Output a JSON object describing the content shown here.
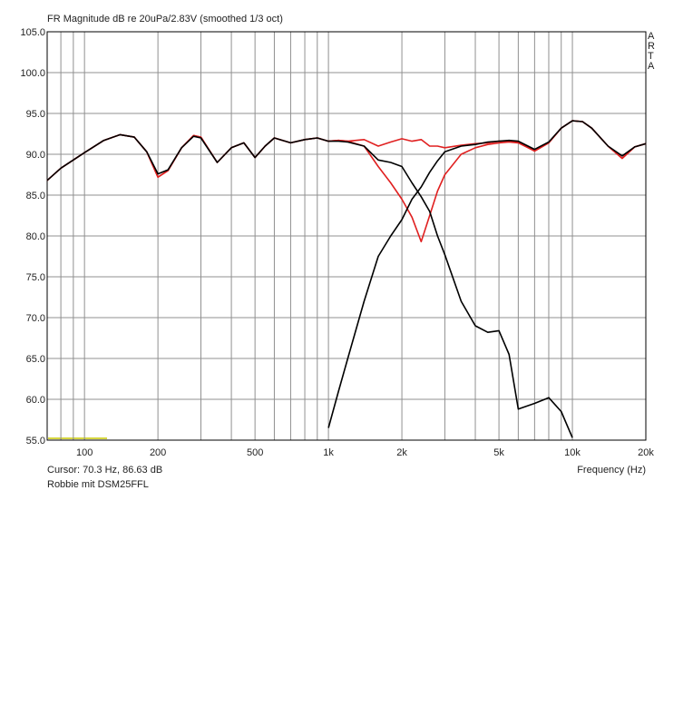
{
  "chart_data": {
    "type": "line",
    "title": "FR Magnitude dB re 20uPa/2.83V (smoothed 1/3 oct)",
    "side_label": "ARTA",
    "cursor_text": "Cursor: 70.3 Hz, 86.63 dB",
    "note": "Robbie mit DSM25FFL",
    "x_label": "Frequency (Hz)",
    "log_x": true,
    "grid": true,
    "xlim": [
      70.3,
      20000
    ],
    "ylim": [
      55,
      105
    ],
    "yticks": [
      {
        "value": 55,
        "label": "55.0"
      },
      {
        "value": 60,
        "label": "60.0"
      },
      {
        "value": 65,
        "label": "65.0"
      },
      {
        "value": 70,
        "label": "70.0"
      },
      {
        "value": 75,
        "label": "75.0"
      },
      {
        "value": 80,
        "label": "80.0"
      },
      {
        "value": 85,
        "label": "85.0"
      },
      {
        "value": 90,
        "label": "90.0"
      },
      {
        "value": 95,
        "label": "95.0"
      },
      {
        "value": 100,
        "label": "100.0"
      },
      {
        "value": 105,
        "label": "105.0"
      }
    ],
    "xticks": [
      100,
      200,
      500,
      {
        "value": 1000,
        "label": "1k"
      },
      {
        "value": 2000,
        "label": "2k"
      },
      {
        "value": 5000,
        "label": "5k"
      },
      {
        "value": 10000,
        "label": "10k"
      },
      {
        "value": 20000,
        "label": "20k"
      }
    ],
    "xminorticks": [
      80,
      90,
      300,
      400,
      600,
      700,
      800,
      900,
      3000,
      4000,
      6000,
      7000,
      8000,
      9000
    ],
    "x": [
      70.3,
      80,
      100,
      120,
      140,
      160,
      180,
      200,
      220,
      250,
      280,
      300,
      350,
      400,
      450,
      500,
      550,
      600,
      700,
      800,
      900,
      1000,
      1100,
      1200,
      1400,
      1600,
      1800,
      2000,
      2200,
      2400,
      2600,
      2800,
      3000,
      3500,
      4000,
      4500,
      5000,
      5500,
      6000,
      7000,
      8000,
      9000,
      10000,
      11000,
      12000,
      14000,
      16000,
      18000,
      20000
    ],
    "series": [
      {
        "color": "#e02020",
        "values": [
          86.8,
          88.3,
          90.2,
          91.7,
          92.4,
          92.1,
          90.3,
          87.2,
          88.0,
          90.8,
          92.3,
          92.1,
          89.0,
          90.8,
          91.4,
          89.6,
          91.0,
          92.0,
          91.4,
          91.8,
          92.0,
          91.6,
          91.7,
          91.6,
          91.8,
          91.0,
          91.5,
          91.9,
          91.6,
          91.8,
          91.0,
          91.0,
          90.8,
          91.1,
          91.3,
          91.4,
          91.6,
          91.6,
          91.5,
          90.4,
          91.4,
          93.2,
          94.1,
          94.0,
          93.2,
          91.0,
          89.5,
          90.9,
          91.3
        ]
      },
      {
        "color": "#e02020",
        "values": [
          86.8,
          88.3,
          90.2,
          91.7,
          92.4,
          92.1,
          90.3,
          87.2,
          88.0,
          90.8,
          92.3,
          92.1,
          89.0,
          90.8,
          91.4,
          89.6,
          91.0,
          92.0,
          91.4,
          91.8,
          92.0,
          91.6,
          91.7,
          91.6,
          91.0,
          88.5,
          86.5,
          84.5,
          82.3,
          79.3,
          82.5,
          85.5,
          87.5,
          90.0,
          90.8,
          91.2,
          91.4,
          91.5,
          91.4,
          90.4,
          91.4,
          93.2,
          94.1,
          94.0,
          93.2,
          91.0,
          89.5,
          90.9,
          91.3
        ]
      },
      {
        "color": "#000000",
        "values": [
          86.8,
          88.3,
          90.2,
          91.7,
          92.4,
          92.1,
          90.3,
          87.6,
          88.1,
          90.8,
          92.2,
          92.0,
          89.0,
          90.8,
          91.4,
          89.6,
          91.0,
          92.0,
          91.4,
          91.8,
          92.0,
          91.6,
          91.6,
          91.5,
          91.0,
          89.3,
          89.0,
          88.5,
          86.5,
          84.8,
          83.0,
          80.0,
          77.7,
          72.0,
          69.0,
          68.2,
          68.4,
          65.5,
          58.8,
          59.5,
          60.2,
          58.5,
          55.3,
          null,
          null,
          null,
          null,
          null,
          null
        ]
      },
      {
        "color": "#000000",
        "values": [
          null,
          null,
          null,
          null,
          null,
          null,
          null,
          null,
          null,
          null,
          null,
          null,
          null,
          null,
          null,
          null,
          null,
          null,
          null,
          null,
          null,
          56.5,
          61.0,
          65.0,
          72.0,
          77.5,
          80.0,
          82.0,
          84.5,
          86.0,
          87.8,
          89.2,
          90.3,
          91.0,
          91.2,
          91.5,
          91.6,
          91.7,
          91.6,
          90.6,
          91.5,
          93.2,
          94.1,
          94.0,
          93.2,
          91.0,
          89.8,
          90.9,
          91.3
        ]
      }
    ]
  }
}
